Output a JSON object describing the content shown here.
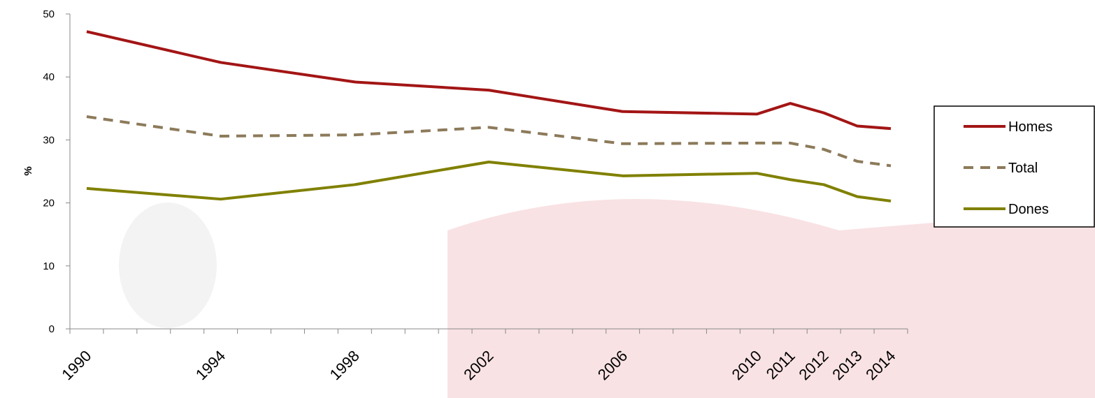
{
  "chart_data": {
    "type": "line",
    "y_label": "%",
    "x": [
      1990,
      1994,
      1998,
      2002,
      2006,
      2010,
      2011,
      2012,
      2013,
      2014
    ],
    "xlim": [
      1989.5,
      2014.5
    ],
    "xticks": [
      1990,
      1994,
      1998,
      2002,
      2006,
      2010,
      2011,
      2012,
      2013,
      2014
    ],
    "ylim": [
      0,
      50
    ],
    "yticks": [
      0,
      10,
      20,
      30,
      40,
      50
    ],
    "legend": "right",
    "series": [
      {
        "name": "Homes",
        "color": "#a31515",
        "dashed": false,
        "values": [
          47.2,
          42.3,
          39.2,
          37.9,
          34.5,
          34.1,
          35.8,
          34.3,
          32.2,
          31.8
        ]
      },
      {
        "name": "Total",
        "color": "#8c7a5a",
        "dashed": true,
        "values": [
          33.7,
          30.6,
          30.8,
          32.0,
          29.4,
          29.5,
          29.5,
          28.5,
          26.6,
          25.9
        ]
      },
      {
        "name": "Dones",
        "color": "#808000",
        "dashed": false,
        "values": [
          22.3,
          20.6,
          22.9,
          26.5,
          24.3,
          24.7,
          23.7,
          22.9,
          21.0,
          20.3
        ]
      }
    ]
  }
}
